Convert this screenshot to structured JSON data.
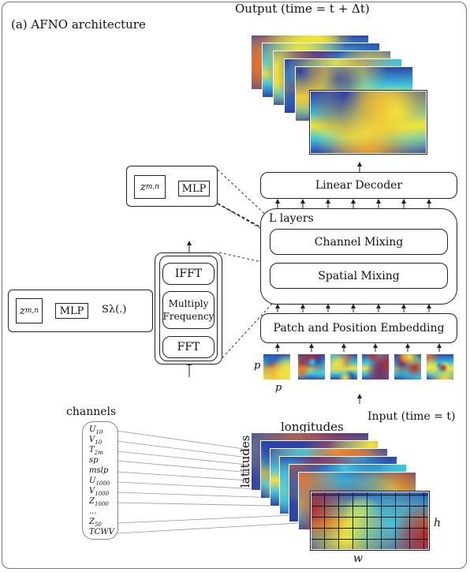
{
  "title": "(a) AFNO architecture",
  "output_label": "Output (time = t + Δt)",
  "input_label": "Input (time = t)",
  "decoder_label": "Linear Decoder",
  "layers_label": "L layers",
  "channel_mixing_label": "Channel Mixing",
  "spatial_mixing_label": "Spatial Mixing",
  "embedding_label": "Patch and Position Embedding",
  "mlp_label": "MLP",
  "z_label": "z",
  "z_sub": "m,n",
  "s_lambda_label": "Sλ(.)",
  "ifft_label": "IFFT",
  "multiply_label": "Multiply",
  "frequency_label": "Frequency",
  "fft_label": "FFT",
  "patch_p_label": "p",
  "channels_title": "channels",
  "channels": [
    {
      "main": "U",
      "sub": "10"
    },
    {
      "main": "V",
      "sub": "10"
    },
    {
      "main": "T",
      "sub": "2m"
    },
    {
      "main": "sp",
      "sub": ""
    },
    {
      "main": "mslp",
      "sub": ""
    },
    {
      "main": "U",
      "sub": "1000"
    },
    {
      "main": "V",
      "sub": "1000"
    },
    {
      "main": "Z",
      "sub": "1000"
    },
    {
      "main": "...",
      "sub": ""
    },
    {
      "main": "Z",
      "sub": "50"
    },
    {
      "main": "TCWV",
      "sub": ""
    }
  ],
  "longitudes_label": "longitudes",
  "latitudes_label": "latitudes",
  "h_label": "h",
  "w_label": "w",
  "colors": {
    "field_blue": "#2a3ea8",
    "field_cyan": "#3ec6e0",
    "field_yellow": "#f2e23a",
    "field_orange": "#e8702a",
    "field_red": "#b8282a"
  }
}
